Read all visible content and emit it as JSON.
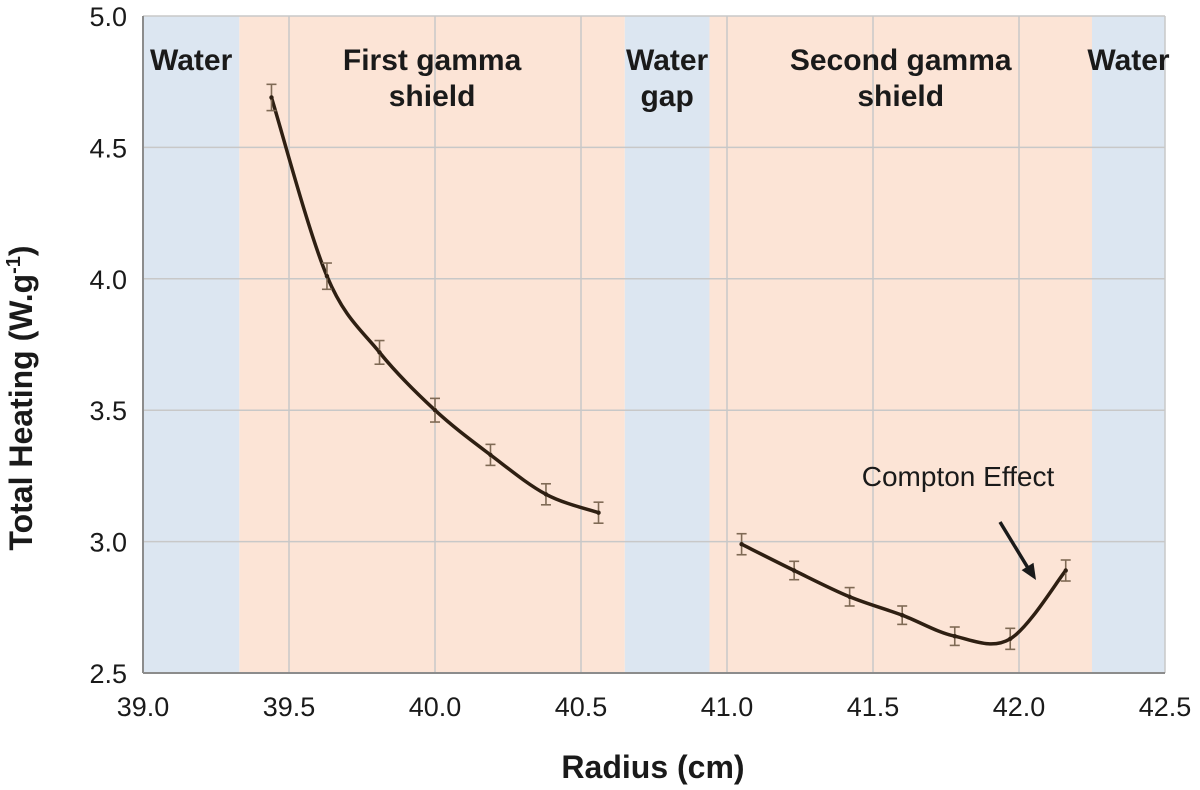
{
  "chart_data": {
    "type": "line",
    "xlabel": "Radius (cm)",
    "ylabel": "Total Heating (W.g",
    "ylabel_sup": "-1",
    "ylabel_tail": ")",
    "xlim": [
      39.0,
      42.5
    ],
    "ylim": [
      2.5,
      5.0
    ],
    "x_ticks": [
      "39.0",
      "39.5",
      "40.0",
      "40.5",
      "41.0",
      "41.5",
      "42.0",
      "42.5"
    ],
    "y_ticks": [
      "2.5",
      "3.0",
      "3.5",
      "4.0",
      "4.5",
      "5.0"
    ],
    "grid": true,
    "regions": [
      {
        "label_lines": [
          "Water"
        ],
        "x0": 39.0,
        "x1": 39.33,
        "color": "#dce6f1"
      },
      {
        "label_lines": [
          "First gamma",
          "shield"
        ],
        "x0": 39.33,
        "x1": 40.65,
        "color": "#fce4d6"
      },
      {
        "label_lines": [
          "Water",
          "gap"
        ],
        "x0": 40.65,
        "x1": 40.94,
        "color": "#dce6f1"
      },
      {
        "label_lines": [
          "Second gamma",
          "shield"
        ],
        "x0": 40.94,
        "x1": 42.25,
        "color": "#fce4d6"
      },
      {
        "label_lines": [
          "Water"
        ],
        "x0": 42.25,
        "x1": 42.5,
        "color": "#dce6f1"
      }
    ],
    "series": [
      {
        "color": "#2e1f12",
        "points": [
          {
            "x": 39.44,
            "y": 4.69,
            "err": 0.05
          },
          {
            "x": 39.63,
            "y": 4.01,
            "err": 0.05
          },
          {
            "x": 39.81,
            "y": 3.72,
            "err": 0.045
          },
          {
            "x": 40.0,
            "y": 3.5,
            "err": 0.045
          },
          {
            "x": 40.19,
            "y": 3.33,
            "err": 0.04
          },
          {
            "x": 40.38,
            "y": 3.18,
            "err": 0.04
          },
          {
            "x": 40.56,
            "y": 3.11,
            "err": 0.04
          }
        ]
      },
      {
        "color": "#2e1f12",
        "points": [
          {
            "x": 41.05,
            "y": 2.99,
            "err": 0.04
          },
          {
            "x": 41.23,
            "y": 2.89,
            "err": 0.035
          },
          {
            "x": 41.42,
            "y": 2.79,
            "err": 0.035
          },
          {
            "x": 41.6,
            "y": 2.72,
            "err": 0.035
          },
          {
            "x": 41.78,
            "y": 2.64,
            "err": 0.035
          },
          {
            "x": 41.97,
            "y": 2.63,
            "err": 0.04
          },
          {
            "x": 42.16,
            "y": 2.89,
            "err": 0.04
          }
        ]
      }
    ],
    "annotation": {
      "text": "Compton Effect",
      "points_to": {
        "x": 42.08,
        "y": 2.88
      }
    }
  },
  "colors": {
    "water": "#dce6f1",
    "shield": "#fce4d6",
    "grid": "#c8c8c8",
    "line": "#2e1f12",
    "errorbar": "#7f6a55"
  }
}
